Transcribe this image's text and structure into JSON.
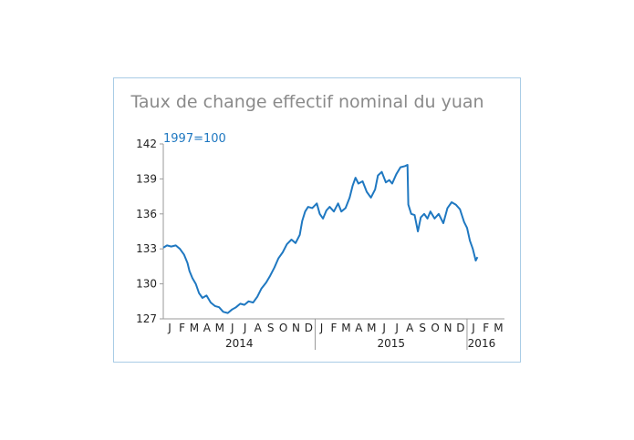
{
  "chart_data": {
    "type": "line",
    "title": "Taux de change effectif nominal du yuan",
    "unit_label": "1997=100",
    "xlabel": "",
    "ylabel": "",
    "ylim": [
      127,
      142
    ],
    "y_ticks": [
      142,
      139,
      136,
      133,
      130,
      127
    ],
    "x_range": [
      "2014-01-01",
      "2016-03-31"
    ],
    "month_ticks": [
      "J",
      "F",
      "M",
      "A",
      "M",
      "J",
      "J",
      "A",
      "S",
      "O",
      "N",
      "D",
      "J",
      "F",
      "M",
      "A",
      "M",
      "J",
      "J",
      "A",
      "S",
      "O",
      "N",
      "D",
      "J",
      "F",
      "M"
    ],
    "years": [
      {
        "label": "2014",
        "start": "2014-01-01",
        "end": "2014-12-31"
      },
      {
        "label": "2015",
        "start": "2015-01-01",
        "end": "2015-12-31"
      },
      {
        "label": "2016",
        "start": "2016-01-01",
        "end": "2016-03-31"
      }
    ],
    "grid": false,
    "line_color": "#1f78c1",
    "series": [
      {
        "name": "",
        "points": [
          [
            "2014-01-01",
            133.1
          ],
          [
            "2014-01-10",
            133.3
          ],
          [
            "2014-01-20",
            133.2
          ],
          [
            "2014-01-31",
            133.3
          ],
          [
            "2014-02-10",
            133.0
          ],
          [
            "2014-02-20",
            132.5
          ],
          [
            "2014-02-28",
            131.8
          ],
          [
            "2014-03-05",
            131.1
          ],
          [
            "2014-03-12",
            130.5
          ],
          [
            "2014-03-20",
            130.0
          ],
          [
            "2014-03-28",
            129.2
          ],
          [
            "2014-04-05",
            128.8
          ],
          [
            "2014-04-15",
            129.0
          ],
          [
            "2014-04-25",
            128.4
          ],
          [
            "2014-05-05",
            128.1
          ],
          [
            "2014-05-15",
            128.0
          ],
          [
            "2014-05-25",
            127.6
          ],
          [
            "2014-06-05",
            127.5
          ],
          [
            "2014-06-15",
            127.8
          ],
          [
            "2014-06-25",
            128.0
          ],
          [
            "2014-07-05",
            128.3
          ],
          [
            "2014-07-15",
            128.2
          ],
          [
            "2014-07-25",
            128.5
          ],
          [
            "2014-08-05",
            128.4
          ],
          [
            "2014-08-15",
            128.9
          ],
          [
            "2014-08-25",
            129.6
          ],
          [
            "2014-09-05",
            130.1
          ],
          [
            "2014-09-15",
            130.7
          ],
          [
            "2014-09-25",
            131.4
          ],
          [
            "2014-10-05",
            132.2
          ],
          [
            "2014-10-15",
            132.7
          ],
          [
            "2014-10-25",
            133.4
          ],
          [
            "2014-11-05",
            133.8
          ],
          [
            "2014-11-15",
            133.5
          ],
          [
            "2014-11-25",
            134.2
          ],
          [
            "2014-12-01",
            135.4
          ],
          [
            "2014-12-08",
            136.2
          ],
          [
            "2014-12-15",
            136.6
          ],
          [
            "2014-12-25",
            136.5
          ],
          [
            "2015-01-05",
            136.9
          ],
          [
            "2015-01-12",
            136.0
          ],
          [
            "2015-01-20",
            135.6
          ],
          [
            "2015-01-28",
            136.3
          ],
          [
            "2015-02-05",
            136.6
          ],
          [
            "2015-02-15",
            136.2
          ],
          [
            "2015-02-25",
            136.9
          ],
          [
            "2015-03-05",
            136.2
          ],
          [
            "2015-03-15",
            136.5
          ],
          [
            "2015-03-25",
            137.4
          ],
          [
            "2015-04-01",
            138.4
          ],
          [
            "2015-04-08",
            139.1
          ],
          [
            "2015-04-15",
            138.6
          ],
          [
            "2015-04-25",
            138.8
          ],
          [
            "2015-05-05",
            137.9
          ],
          [
            "2015-05-15",
            137.4
          ],
          [
            "2015-05-25",
            138.1
          ],
          [
            "2015-06-01",
            139.3
          ],
          [
            "2015-06-10",
            139.6
          ],
          [
            "2015-06-20",
            138.7
          ],
          [
            "2015-06-28",
            138.9
          ],
          [
            "2015-07-05",
            138.6
          ],
          [
            "2015-07-15",
            139.4
          ],
          [
            "2015-07-25",
            140.0
          ],
          [
            "2015-08-05",
            140.1
          ],
          [
            "2015-08-11",
            140.2
          ],
          [
            "2015-08-13",
            136.8
          ],
          [
            "2015-08-20",
            136.0
          ],
          [
            "2015-08-28",
            135.9
          ],
          [
            "2015-09-05",
            134.5
          ],
          [
            "2015-09-12",
            135.7
          ],
          [
            "2015-09-20",
            136.0
          ],
          [
            "2015-09-28",
            135.6
          ],
          [
            "2015-10-05",
            136.2
          ],
          [
            "2015-10-15",
            135.6
          ],
          [
            "2015-10-25",
            136.0
          ],
          [
            "2015-11-05",
            135.2
          ],
          [
            "2015-11-15",
            136.5
          ],
          [
            "2015-11-25",
            137.0
          ],
          [
            "2015-12-05",
            136.8
          ],
          [
            "2015-12-15",
            136.4
          ],
          [
            "2015-12-25",
            135.3
          ],
          [
            "2016-01-01",
            134.8
          ],
          [
            "2016-01-08",
            133.7
          ],
          [
            "2016-01-15",
            133.0
          ],
          [
            "2016-01-22",
            132.0
          ],
          [
            "2016-01-26",
            132.3
          ]
        ]
      }
    ]
  }
}
